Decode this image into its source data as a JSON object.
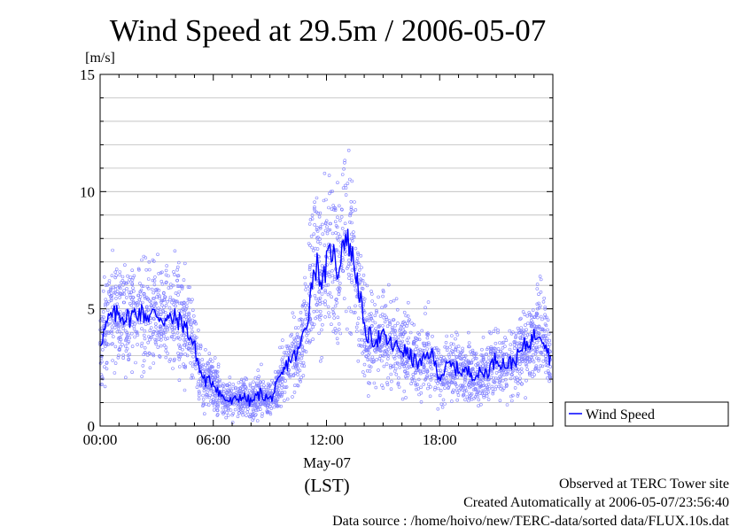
{
  "chart_data": {
    "type": "scatter",
    "title": "Wind Speed at 29.5m / 2006-05-07",
    "ylabel": "[m/s]",
    "xlabel": "(LST)",
    "date_label": "May-07",
    "xlim": [
      0,
      24
    ],
    "ylim": [
      0,
      15
    ],
    "x_unit": "hour of day",
    "x_ticks": [
      "00:00",
      "06:00",
      "12:00",
      "18:00"
    ],
    "y_ticks": [
      "0",
      "5",
      "10",
      "15"
    ],
    "grid": true,
    "legend_position": "right, below plot",
    "series": [
      {
        "name": "Wind Speed",
        "style": "line with scatter points",
        "line_color": "#0000ff",
        "point_color": "#8080ff",
        "x": [
          0.0,
          0.5,
          1.0,
          1.5,
          2.0,
          2.5,
          3.0,
          3.5,
          4.0,
          4.5,
          5.0,
          5.3,
          5.6,
          6.0,
          6.5,
          7.0,
          7.5,
          8.0,
          8.5,
          9.0,
          9.5,
          10.0,
          10.5,
          11.0,
          11.3,
          11.5,
          11.8,
          12.0,
          12.3,
          12.6,
          12.9,
          13.2,
          13.5,
          13.8,
          14.0,
          14.5,
          15.0,
          15.5,
          16.0,
          16.5,
          17.0,
          17.5,
          18.0,
          18.5,
          19.0,
          19.5,
          20.0,
          20.5,
          21.0,
          21.5,
          22.0,
          22.5,
          23.0,
          23.3,
          23.6,
          23.9
        ],
        "values": [
          3.6,
          4.6,
          4.8,
          4.6,
          4.9,
          4.7,
          4.8,
          4.5,
          4.6,
          4.3,
          3.4,
          2.3,
          1.9,
          1.9,
          1.2,
          1.0,
          1.3,
          1.0,
          1.4,
          1.1,
          1.9,
          2.8,
          3.1,
          4.6,
          6.6,
          6.9,
          6.0,
          6.9,
          7.6,
          6.5,
          8.1,
          7.8,
          6.8,
          5.5,
          4.0,
          3.7,
          3.8,
          3.4,
          3.3,
          2.9,
          2.6,
          3.2,
          2.1,
          2.6,
          2.4,
          2.3,
          2.2,
          2.3,
          2.9,
          2.6,
          2.8,
          3.4,
          3.8,
          4.1,
          3.6,
          2.7
        ]
      }
    ]
  },
  "footer": {
    "observed": "Observed at TERC Tower site",
    "created": "Created Automatically at 2006-05-07/23:56:40",
    "source": "Data source : /home/hoivo/new/TERC-data/sorted  data/FLUX.10s.dat"
  }
}
